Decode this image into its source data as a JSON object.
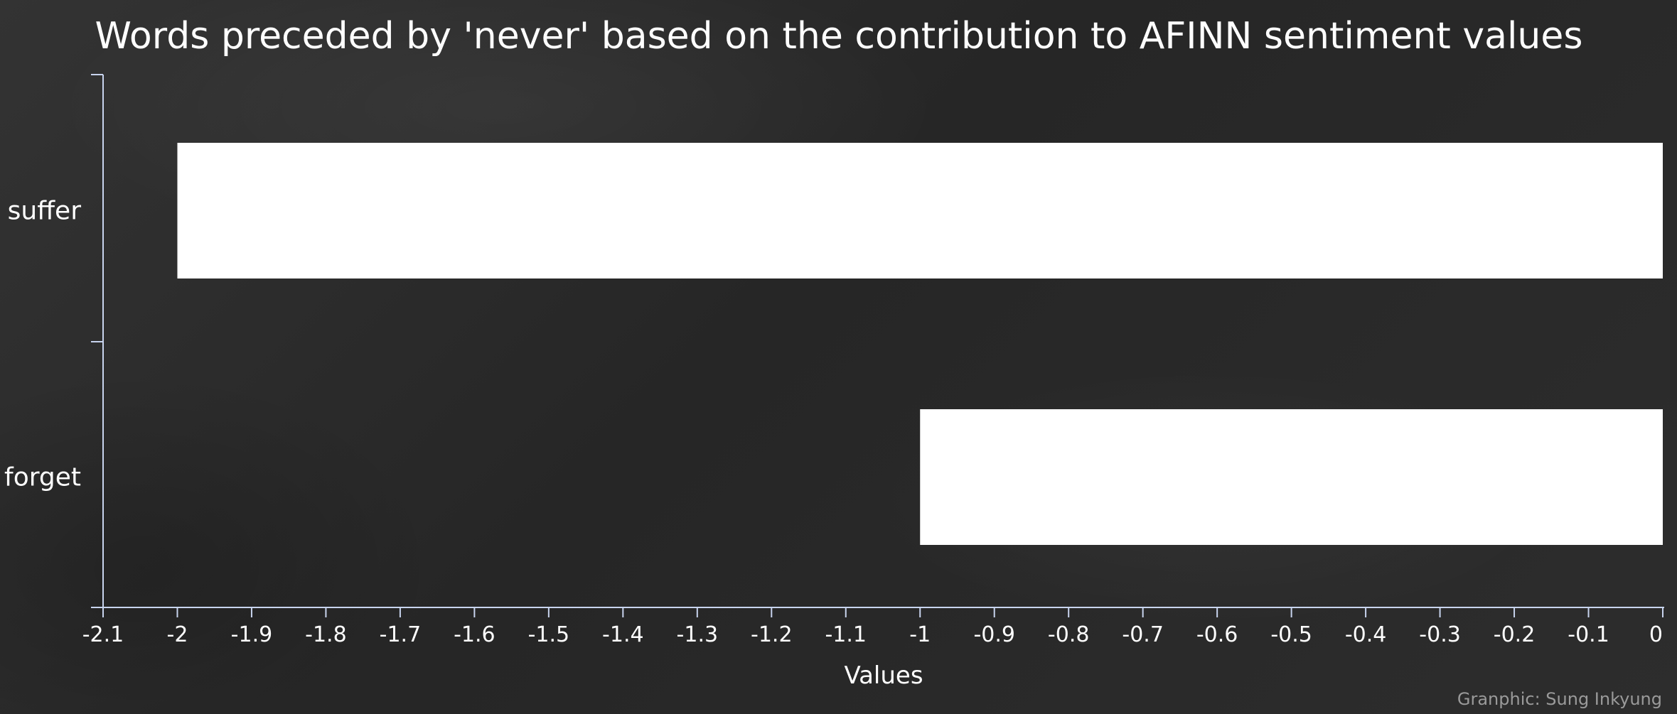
{
  "chart_data": {
    "type": "bar",
    "orientation": "horizontal",
    "title": "Words preceded by 'never' based on the contribution to AFINN sentiment values",
    "categories": [
      "suffer",
      "forget"
    ],
    "values": [
      -2,
      -1
    ],
    "xlabel": "Values",
    "ylabel": "",
    "xlim": [
      -2.1,
      0
    ],
    "xticks": [
      -2.1,
      -2,
      -1.9,
      -1.8,
      -1.7,
      -1.6,
      -1.5,
      -1.4,
      -1.3,
      -1.2,
      -1.1,
      -1,
      -0.9,
      -0.8,
      -0.7,
      -0.6,
      -0.5,
      -0.4,
      -0.3,
      -0.2,
      -0.1,
      0
    ],
    "xtick_labels": [
      "-2.1",
      "-2",
      "-1.9",
      "-1.8",
      "-1.7",
      "-1.6",
      "-1.5",
      "-1.4",
      "-1.3",
      "-1.2",
      "-1.1",
      "-1",
      "-0.9",
      "-0.8",
      "-0.7",
      "-0.6",
      "-0.5",
      "-0.4",
      "-0.3",
      "-0.2",
      "-0.1",
      "0"
    ],
    "grid": false,
    "bar_color": "#ffffff",
    "background_color": "#2b2b2b"
  },
  "credit": "Granphic: Sung Inkyung"
}
